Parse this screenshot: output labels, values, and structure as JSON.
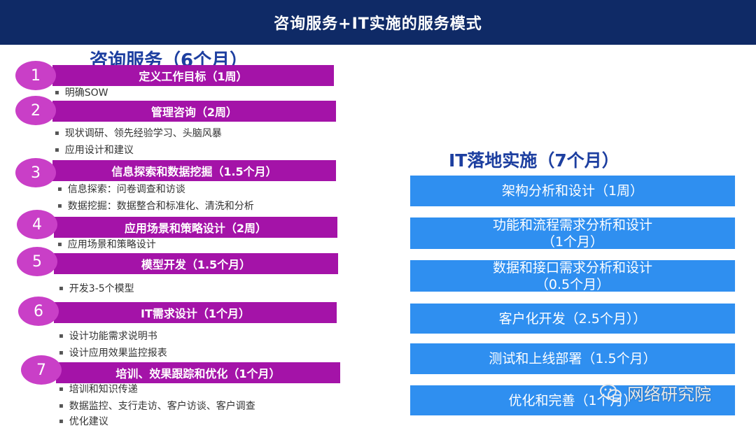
{
  "header": {
    "title": "咨询服务+IT实施的服务模式"
  },
  "consulting": {
    "title": "咨询服务（6个月）",
    "steps": [
      {
        "number": "1",
        "label": "定义工作目标（1周）",
        "bullets": [
          "明确SOW"
        ]
      },
      {
        "number": "2",
        "label": "管理咨询（2周）",
        "bullets": [
          "现状调研、领先经验学习、头脑风暴",
          "应用设计和建议"
        ]
      },
      {
        "number": "3",
        "label": "信息探索和数据挖掘（1.5个月）",
        "bullets": [
          "信息探索：问卷调查和访谈",
          "数据挖掘：数据整合和标准化、清洗和分析"
        ]
      },
      {
        "number": "4",
        "label": "应用场景和策略设计（2周）",
        "bullets": [
          "应用场景和策略设计"
        ]
      },
      {
        "number": "5",
        "label": "模型开发（1.5个月）",
        "bullets": [
          "开发3-5个模型"
        ]
      },
      {
        "number": "6",
        "label": "IT需求设计（1个月）",
        "bullets": [
          "设计功能需求说明书",
          "设计应用效果监控报表"
        ]
      },
      {
        "number": "7",
        "label": "培训、效果跟踪和优化（1个月）",
        "bullets": [
          "培训和知识传递",
          "数据监控、支行走访、客户访谈、客户调查",
          "优化建议"
        ]
      }
    ]
  },
  "it": {
    "title": "IT落地实施（7个月）",
    "boxes": [
      {
        "line1": "架构分析和设计（1周）",
        "line2": ""
      },
      {
        "line1": "功能和流程需求分析和设计",
        "line2": "（1个月）"
      },
      {
        "line1": "数据和接口需求分析和设计",
        "line2": "（0.5个月）"
      },
      {
        "line1": "客户化开发（2.5个月））",
        "line2": ""
      },
      {
        "line1": "测试和上线部署（1.5个月）",
        "line2": ""
      },
      {
        "line1": "优化和完善（1个月）",
        "line2": ""
      }
    ]
  },
  "watermark": {
    "text": "网络研究院",
    "icon": "wechat-icon"
  },
  "colors": {
    "header_bg": "#0f2a66",
    "step_bar": "#a413a8",
    "step_circle": "#c93fc7",
    "it_box": "#2f8ff0",
    "section_title": "#1d3fa0"
  }
}
